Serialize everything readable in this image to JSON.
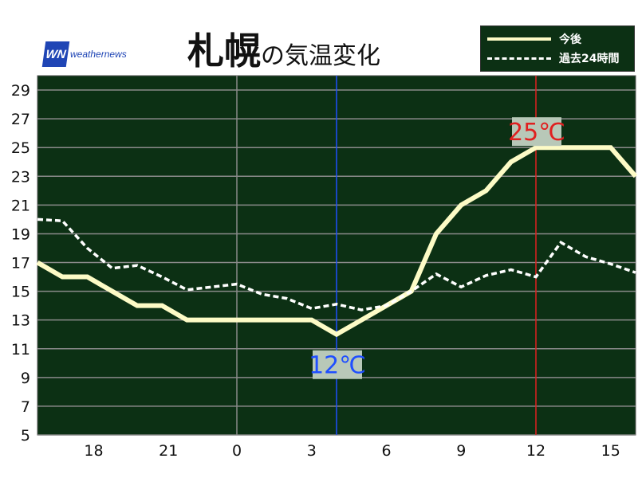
{
  "logo": {
    "mark": "WN",
    "text": "weathernews"
  },
  "title": {
    "city": "札幌",
    "suffix": "の気温変化"
  },
  "legend": {
    "forecast": "今後",
    "past": "過去24時間"
  },
  "colors": {
    "background": "#0c3014",
    "forecast": "#fdfbc6",
    "past": "#ffffff",
    "min_marker": "#1f4fff",
    "max_marker": "#e02020",
    "grid": "#8a8a8a"
  },
  "chart_data": {
    "type": "line",
    "xlim": [
      16,
      40
    ],
    "ylim": [
      5,
      30
    ],
    "grid": true,
    "legend_placement": "top-right",
    "x_ticks": [
      {
        "x": 18,
        "label": "18"
      },
      {
        "x": 21,
        "label": "21"
      },
      {
        "x": 24,
        "label": "0"
      },
      {
        "x": 27,
        "label": "3"
      },
      {
        "x": 30,
        "label": "6"
      },
      {
        "x": 33,
        "label": "9"
      },
      {
        "x": 36,
        "label": "12"
      },
      {
        "x": 39,
        "label": "15"
      }
    ],
    "y_ticks": [
      29,
      27,
      25,
      23,
      21,
      19,
      17,
      15,
      13,
      11,
      9,
      7,
      5
    ],
    "x": [
      16,
      17,
      18,
      19,
      20,
      21,
      22,
      23,
      24,
      25,
      26,
      27,
      28,
      29,
      30,
      31,
      32,
      33,
      34,
      35,
      36,
      37,
      38,
      39,
      40
    ],
    "series": [
      {
        "name": "今後",
        "style": "solid",
        "values": [
          17,
          16,
          16,
          15,
          14,
          14,
          13,
          13,
          13,
          13,
          13,
          13,
          12,
          13,
          14,
          15,
          19,
          21,
          22,
          24,
          25,
          25,
          25,
          25,
          23
        ]
      },
      {
        "name": "過去24時間",
        "style": "dashed",
        "values": [
          20.0,
          19.9,
          18.0,
          16.6,
          16.8,
          16.0,
          15.1,
          15.3,
          15.5,
          14.8,
          14.5,
          13.8,
          14.1,
          13.7,
          14.0,
          15.0,
          16.2,
          15.3,
          16.1,
          16.5,
          16.0,
          18.4,
          17.4,
          16.9,
          16.3
        ]
      }
    ],
    "annotations": [
      {
        "x": 28,
        "y": 12,
        "label": "12℃",
        "type": "min"
      },
      {
        "x": 36,
        "y": 25,
        "label": "25℃",
        "type": "max"
      }
    ]
  }
}
